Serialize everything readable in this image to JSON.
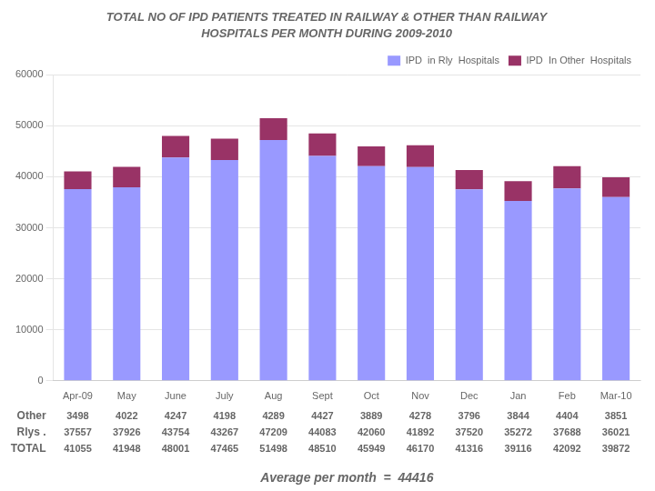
{
  "chart_data": {
    "type": "bar",
    "stacked": true,
    "title": "TOTAL NO OF IPD PATIENTS TREATED IN RAILWAY & OTHER THAN RAILWAY",
    "subtitle": "HOSPITALS PER MONTH DURING 2009-2010",
    "categories": [
      "Apr-09",
      "May",
      "June",
      "July",
      "Aug",
      "Sept",
      "Oct",
      "Nov",
      "Dec",
      "Jan",
      "Feb",
      "Mar-10"
    ],
    "series": [
      {
        "name": "IPD  in Rly  Hospitals",
        "color": "#9999FF",
        "values": [
          37557,
          37926,
          43754,
          43267,
          47209,
          44083,
          42060,
          41892,
          37520,
          35272,
          37688,
          36021
        ]
      },
      {
        "name": "IPD  In Other  Hospitals",
        "color": "#993366",
        "values": [
          3498,
          4022,
          4247,
          4198,
          4289,
          4427,
          3889,
          4278,
          3796,
          3844,
          4404,
          3851
        ]
      }
    ],
    "ylim": [
      0,
      60000
    ],
    "yticks": [
      0,
      10000,
      20000,
      30000,
      40000,
      50000,
      60000
    ],
    "grid": true,
    "legend": "top-right",
    "table": [
      {
        "label": "Other",
        "values": [
          3498,
          4022,
          4247,
          4198,
          4289,
          4427,
          3889,
          4278,
          3796,
          3844,
          4404,
          3851
        ]
      },
      {
        "label": "Rlys .",
        "values": [
          37557,
          37926,
          43754,
          43267,
          47209,
          44083,
          42060,
          41892,
          37520,
          35272,
          37688,
          36021
        ]
      },
      {
        "label": "TOTAL",
        "values": [
          41055,
          41948,
          48001,
          47465,
          51498,
          48510,
          45949,
          46170,
          41316,
          39116,
          42092,
          39872
        ]
      }
    ],
    "annotations": [
      "Average per month  =  44416"
    ]
  }
}
